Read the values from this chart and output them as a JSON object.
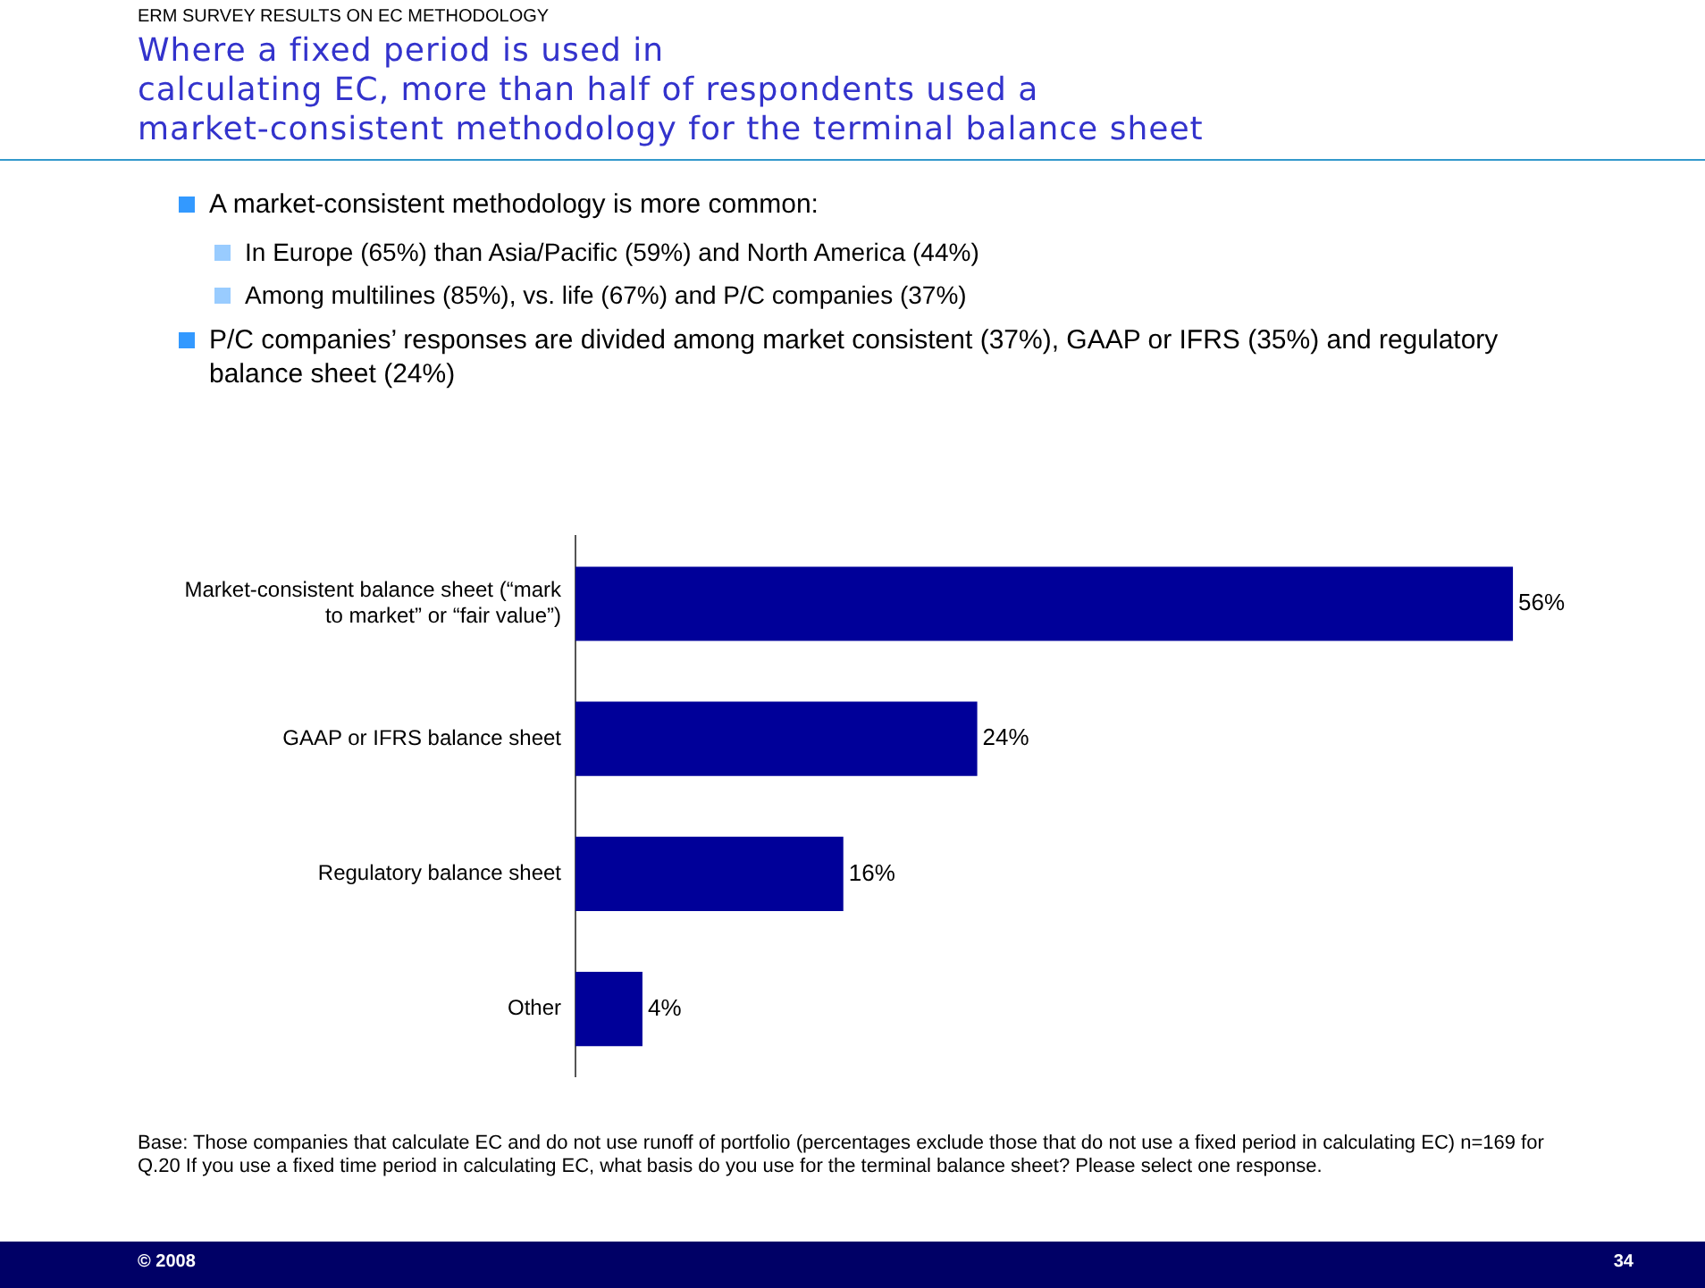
{
  "chart_data": {
    "type": "bar",
    "orientation": "horizontal",
    "subtitle": "ERM SURVEY RESULTS ON EC METHODOLOGY",
    "title": "Where a fixed period is used in\ncalculating EC, more than half of respondents used a\nmarket-consistent methodology for the terminal balance sheet",
    "categories": [
      "Market-consistent balance sheet (“mark to market” or “fair value”)",
      "GAAP or IFRS balance sheet",
      "Regulatory balance sheet",
      "Other"
    ],
    "values": [
      56,
      24,
      16,
      4
    ],
    "value_labels": [
      "56%",
      "24%",
      "16%",
      "4%"
    ],
    "color": "#000099",
    "grid": false,
    "legend": false,
    "annotations": [
      "A market-consistent methodology is more common:",
      "In Europe (65%) than Asia/Pacific (59%) and North America (44%)",
      "Among multilines (85%), vs. life (67%) and P/C companies (37%)",
      "P/C companies’ responses are divided among market consistent (37%), GAAP or IFRS (35%) and regulatory balance sheet (24%)",
      "Base: Those companies that calculate EC and do not use runoff of portfolio (percentages exclude those that do not use a fixed period in calculating EC) n=169 for Q.20 If you use a fixed time period in calculating EC, what basis do you use for the terminal balance sheet? Please select one response.",
      "© 2008",
      "34"
    ]
  }
}
